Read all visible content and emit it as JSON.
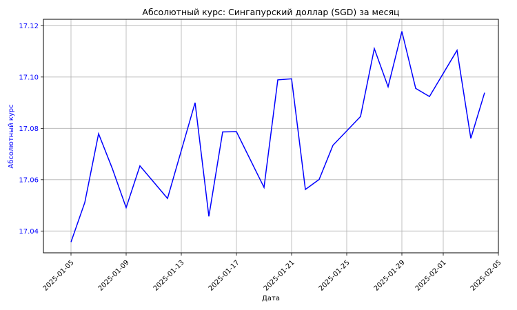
{
  "chart_data": {
    "type": "line",
    "title": "Абсолютный курс: Сингапурский доллар (SGD) за месяц",
    "xlabel": "Дата",
    "ylabel": "Абсолютный курс",
    "x_tick_labels": [
      "2025-01-05",
      "2025-01-09",
      "2025-01-13",
      "2025-01-17",
      "2025-01-21",
      "2025-01-25",
      "2025-01-29",
      "2025-02-01",
      "2025-02-05"
    ],
    "y_tick_labels": [
      "17.04",
      "17.06",
      "17.08",
      "17.10",
      "17.12"
    ],
    "xlim": [
      "2025-01-03",
      "2025-02-05"
    ],
    "ylim": [
      17.0315,
      17.1225
    ],
    "grid": true,
    "line_color": "#0000ff",
    "y_axis_color": "#0000ff",
    "series": [
      {
        "x": [
          "2025-01-05",
          "2025-01-06",
          "2025-01-07",
          "2025-01-08",
          "2025-01-09",
          "2025-01-10",
          "2025-01-12",
          "2025-01-14",
          "2025-01-15",
          "2025-01-16",
          "2025-01-17",
          "2025-01-19",
          "2025-01-20",
          "2025-01-21",
          "2025-01-22",
          "2025-01-23",
          "2025-01-24",
          "2025-01-26",
          "2025-01-27",
          "2025-01-28",
          "2025-01-29",
          "2025-01-30",
          "2025-01-31",
          "2025-02-02",
          "2025-02-03",
          "2025-02-04"
        ],
        "values": [
          17.0357,
          17.0511,
          17.0779,
          17.0643,
          17.0491,
          17.0654,
          17.0527,
          17.09,
          17.0457,
          17.0786,
          17.0787,
          17.057,
          17.0989,
          17.0993,
          17.0562,
          17.0601,
          17.0734,
          17.0846,
          17.1111,
          17.0962,
          17.1178,
          17.0956,
          17.0924,
          17.1104,
          17.0761,
          17.0939
        ]
      }
    ]
  }
}
